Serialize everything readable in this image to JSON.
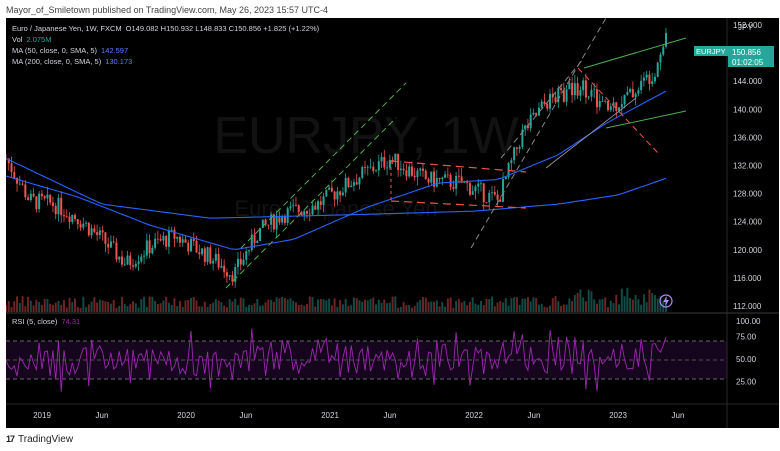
{
  "caption": "Mayor_of_Smiletown published on TradingView.com, May 26, 2023 15:57 UTC-4",
  "legend": {
    "symbol_line_prefix": "Euro / Japanese Yen, 1W, FXCM",
    "ohlc": "O149.082 H150.932 L148.833 C150.856 +1.825 (+1.22%)",
    "vol_label": "Vol",
    "vol_value": "2.075M",
    "ma50_label": "MA (50, close, 0, SMA, 5)",
    "ma50_value": "142.597",
    "ma200_label": "MA (200, close, 0, SMA, 5)",
    "ma200_value": "130.173",
    "rsi_label": "RSI (5, close)",
    "rsi_value": "74.31"
  },
  "watermark": {
    "big": "EURJPY, 1W",
    "small": "Euro / Japanese Yen"
  },
  "currency": "JPY",
  "price_tag": {
    "symbol": "EURJPY",
    "price": "150.856",
    "countdown": "01:02:05"
  },
  "footer_brand": "TradingView",
  "colors": {
    "up": "#26a69a",
    "down": "#ef5350",
    "ma50": "#2962ff",
    "ma200": "#2962ff",
    "rsi": "#9c27b0",
    "channel": "#4caf50",
    "wedge": "#ef5350",
    "trend_gray": "#9e9e9e"
  },
  "chart_data": {
    "type": "candlestick",
    "title": "Euro / Japanese Yen, 1W, FXCM",
    "x_ticks": [
      "2019",
      "Jun",
      "2020",
      "Jun",
      "2021",
      "Jun",
      "2022",
      "Jun",
      "2023",
      "Jun"
    ],
    "y_ticks": [
      "152.000",
      "148.000",
      "144.000",
      "140.000",
      "136.000",
      "132.000",
      "128.000",
      "124.000",
      "120.000",
      "116.000",
      "112.000"
    ],
    "ylim": [
      111,
      153
    ],
    "rsi_ticks": [
      "100.00",
      "75.00",
      "50.00",
      "25.00"
    ],
    "rsi_ylim": [
      0,
      100
    ],
    "last_close": 150.856,
    "price_path": [
      [
        "2018-10",
        133.0
      ],
      [
        "2018-12",
        127.0
      ],
      [
        "2019-02",
        126.5
      ],
      [
        "2019-04",
        124.5
      ],
      [
        "2019-06",
        121.5
      ],
      [
        "2019-08",
        118.0
      ],
      [
        "2019-10",
        120.5
      ],
      [
        "2019-12",
        122.0
      ],
      [
        "2020-03",
        119.0
      ],
      [
        "2020-05",
        116.5
      ],
      [
        "2020-07",
        122.5
      ],
      [
        "2020-09",
        125.0
      ],
      [
        "2020-12",
        126.5
      ],
      [
        "2021-03",
        130.0
      ],
      [
        "2021-06",
        133.0
      ],
      [
        "2021-09",
        130.0
      ],
      [
        "2021-12",
        129.5
      ],
      [
        "2022-03",
        127.0
      ],
      [
        "2022-05",
        136.5
      ],
      [
        "2022-07",
        141.0
      ],
      [
        "2022-10",
        143.5
      ],
      [
        "2022-12",
        140.0
      ],
      [
        "2023-02",
        142.0
      ],
      [
        "2023-04",
        145.5
      ],
      [
        "2023-05",
        150.856
      ]
    ],
    "ma50_path": [
      [
        "2018-10",
        130.5
      ],
      [
        "2019-04",
        127.5
      ],
      [
        "2019-10",
        123.5
      ],
      [
        "2020-05",
        120.0
      ],
      [
        "2020-10",
        121.5
      ],
      [
        "2021-04",
        126.0
      ],
      [
        "2021-10",
        129.5
      ],
      [
        "2022-03",
        130.0
      ],
      [
        "2022-08",
        133.5
      ],
      [
        "2022-12",
        138.0
      ],
      [
        "2023-05",
        142.597
      ]
    ],
    "ma200_path": [
      [
        "2018-10",
        133.0
      ],
      [
        "2019-06",
        126.5
      ],
      [
        "2020-03",
        124.5
      ],
      [
        "2021-03",
        125.0
      ],
      [
        "2022-01",
        125.5
      ],
      [
        "2022-08",
        126.5
      ],
      [
        "2023-01",
        127.8
      ],
      [
        "2023-05",
        130.173
      ]
    ],
    "rsi_last": 74.31
  }
}
